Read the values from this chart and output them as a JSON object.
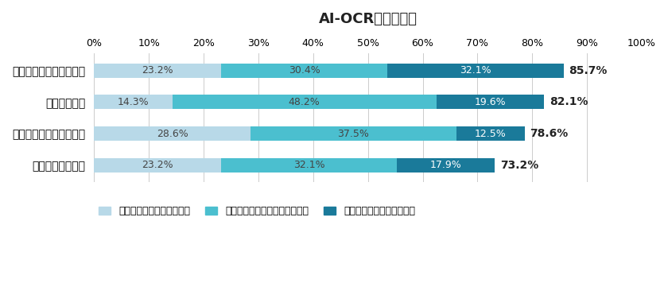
{
  "title": "AI-OCR導入の効果",
  "categories": [
    "データ作成に要する時間",
    "ミスの発生率",
    "当該業務に必要な人員数",
    "当該業務の外注費"
  ],
  "series": [
    {
      "label": "２割未満の効果が得られた",
      "values": [
        23.2,
        14.3,
        28.6,
        23.2
      ],
      "color": "#b8d9e8"
    },
    {
      "label": "２割から５割の効果が得られた",
      "values": [
        30.4,
        48.2,
        37.5,
        32.1
      ],
      "color": "#4bbfcf"
    },
    {
      "label": "５割以上の効果が得られた",
      "values": [
        32.1,
        19.6,
        12.5,
        17.9
      ],
      "color": "#1a7a9a"
    }
  ],
  "totals": [
    "85.7%",
    "82.1%",
    "78.6%",
    "73.2%"
  ],
  "xlim": [
    0,
    100
  ],
  "xticks": [
    0,
    10,
    20,
    30,
    40,
    50,
    60,
    70,
    80,
    90,
    100
  ],
  "bar_height": 0.45,
  "background_color": "#ffffff",
  "title_fontsize": 13,
  "label_fontsize": 9,
  "tick_fontsize": 9,
  "legend_fontsize": 9,
  "total_fontsize": 10
}
